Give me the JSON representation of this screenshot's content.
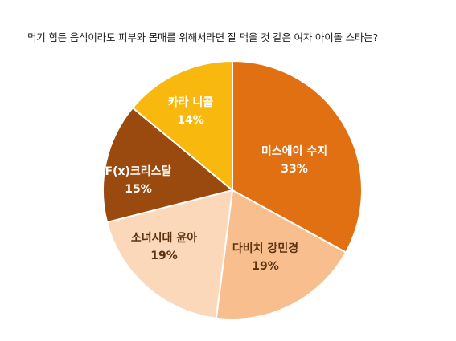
{
  "chart_data": {
    "type": "pie",
    "title": "먹기 힘든 음식이라도 피부와 몸매를 위해서라면 잘 먹을 것 같은 여자 아이돌 스타는?",
    "slices": [
      {
        "label": "미스에이 수지",
        "value": 33,
        "value_label": "33%",
        "color": "#E07012",
        "text_color": "#ffffff"
      },
      {
        "label": "다비치 강민경",
        "value": 19,
        "value_label": "19%",
        "color": "#F8BE8E",
        "text_color": "#5a3210"
      },
      {
        "label": "소녀시대 윤아",
        "value": 19,
        "value_label": "19%",
        "color": "#FCD8BA",
        "text_color": "#5a3210"
      },
      {
        "label": "F(x)크리스탈",
        "value": 15,
        "value_label": "15%",
        "color": "#9A4A0E",
        "text_color": "#ffffff"
      },
      {
        "label": "카라 니콜",
        "value": 14,
        "value_label": "14%",
        "color": "#F8B80E",
        "text_color": "#ffffff"
      }
    ],
    "start_angle_deg": 0,
    "direction": "clockwise",
    "legend": "none"
  }
}
